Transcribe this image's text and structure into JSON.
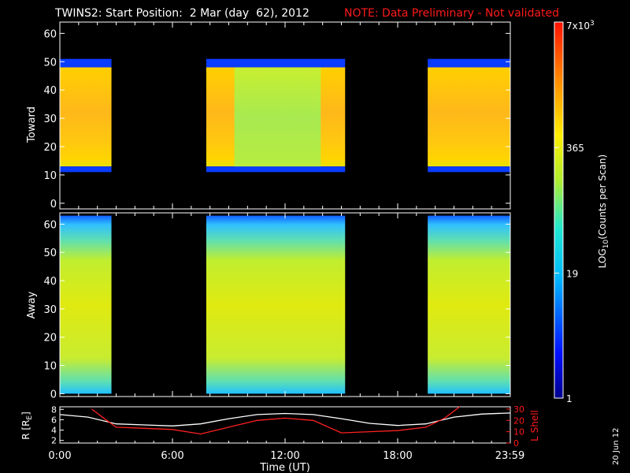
{
  "header": {
    "title": "TWINS2: Start Position:  2 Mar (day  62), 2012",
    "note": "NOTE: Data Preliminary - Not validated",
    "date_stamp": "20 Jun 12"
  },
  "colors": {
    "background": "#000000",
    "axes": "#ffffff",
    "note": "#ff1a1a",
    "r_line": "#ffffff",
    "lshell_line": "#ff2020"
  },
  "chart_data": [
    {
      "type": "heatmap",
      "title": "",
      "ylabel": "Toward",
      "ylim": [
        -2,
        64
      ],
      "yticks": [
        0,
        10,
        20,
        30,
        40,
        50,
        60
      ],
      "x_range_hours": [
        0,
        24
      ],
      "data_intervals_hours": [
        [
          0,
          2.75
        ],
        [
          7.8,
          15.2
        ],
        [
          19.6,
          24
        ]
      ],
      "color_bands": [
        {
          "y": [
            0,
            13
          ],
          "level": "black (no counts)"
        },
        {
          "y": [
            13,
            48
          ],
          "level": "orange/yellow (~365-7x10^3)"
        },
        {
          "y": [
            48,
            51
          ],
          "level": "blue (~1-19)"
        },
        {
          "y": [
            51,
            64
          ],
          "level": "black (no counts)"
        }
      ]
    },
    {
      "type": "heatmap",
      "title": "",
      "ylabel": "Away",
      "ylim": [
        -1,
        64
      ],
      "yticks": [
        0,
        10,
        20,
        30,
        40,
        50,
        60
      ],
      "x_range_hours": [
        0,
        24
      ],
      "data_intervals_hours": [
        [
          0,
          2.75
        ],
        [
          7.8,
          15.2
        ],
        [
          19.6,
          24
        ]
      ],
      "color_bands": [
        {
          "y": [
            0,
            2
          ],
          "level": "cyan (~19-365)"
        },
        {
          "y": [
            2,
            55
          ],
          "level": "yellow/green (~365)"
        },
        {
          "y": [
            55,
            63
          ],
          "level": "blue/cyan (~19)"
        }
      ]
    },
    {
      "type": "line",
      "title": "",
      "xlabel": "Time (UT)",
      "xticks": [
        "0:00",
        "6:00",
        "12:00",
        "18:00",
        "23:59"
      ],
      "xtick_hours": [
        0,
        6,
        12,
        18,
        23.98
      ],
      "y_left": {
        "label": "R [R",
        "label_sub": "E",
        "label_end": "]",
        "ticks": [
          2,
          4,
          6,
          8
        ],
        "range": [
          1.5,
          8.5
        ]
      },
      "y_right": {
        "label": "L Shell",
        "ticks": [
          0,
          10,
          20,
          30
        ],
        "range": [
          0,
          32
        ]
      },
      "series": [
        {
          "name": "R [RE]",
          "axis": "left",
          "x": [
            0,
            1.5,
            3,
            4.5,
            6,
            7.5,
            9,
            10.5,
            12,
            13.5,
            15,
            16.5,
            18,
            19.5,
            21,
            22.5,
            24
          ],
          "values": [
            7.0,
            6.5,
            5.2,
            5.0,
            4.8,
            5.2,
            6.2,
            7.0,
            7.2,
            7.0,
            6.2,
            5.3,
            4.9,
            5.2,
            6.5,
            7.1,
            7.3
          ]
        },
        {
          "name": "L Shell",
          "axis": "right",
          "x": [
            1.7,
            2.5,
            3,
            4.5,
            6,
            7.5,
            9,
            10.5,
            12,
            13.5,
            15,
            16.5,
            18,
            19.5,
            20.5,
            21.3
          ],
          "values": [
            30,
            20,
            14,
            13,
            12,
            8,
            14,
            20,
            22,
            20,
            9,
            10,
            11,
            14,
            22,
            32
          ]
        }
      ]
    }
  ],
  "colorbar": {
    "label": "LOG",
    "label_sub": "10",
    "label_end": "(Counts per Scan)",
    "tick_labels": [
      "7x10",
      "365",
      "19",
      "1"
    ],
    "tick_exponent": "3",
    "tick_values": [
      7000,
      365,
      19,
      1
    ],
    "scale": "log"
  }
}
